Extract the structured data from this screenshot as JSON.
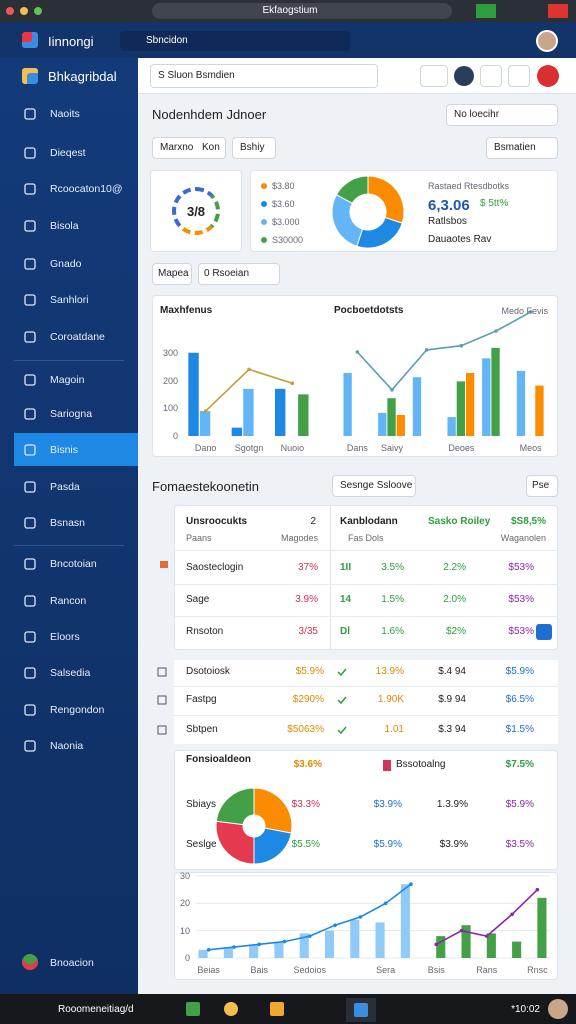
{
  "browser": {
    "url": "Ekfaogstium"
  },
  "header": {
    "app_name": "Iinnongi",
    "search": "Sbncidon"
  },
  "sidebar": {
    "title": "Bhkagribdal",
    "items": [
      "Naoits",
      "Dieqest",
      "Rcoocaton10@",
      "Bisola",
      "Gnado",
      "Sanhlori",
      "Coroatdane",
      "Magoin",
      "Sariogna",
      "Bisnis",
      "Pasda",
      "Bsnasn",
      "Bncotoian",
      "Rancon",
      "Eloors",
      "Salsedia",
      "Rengondon",
      "Naonia"
    ],
    "footer": "Bnoacion"
  },
  "toolbar": {
    "select": "S Sluon Bsmdien"
  },
  "page": {
    "title": "Nodenhdem Jdnoer",
    "status": "No loecihr",
    "tabs": [
      "Marxno",
      "Kon",
      "Bshiy"
    ],
    "filter": "Bsmatien"
  },
  "kpi": {
    "gauge": "3/8",
    "stats_title": "Rastaed Rtesdbotks",
    "stats_value": "6,3.06",
    "stats_change": "$ 5tt%",
    "stats_label": "Ratlsbos",
    "stats_note": "Dauaotes Rav"
  },
  "controls": {
    "label": "Mapea",
    "select": "0 Rsoeian"
  },
  "section": {
    "title": "Fomaestekoonetin",
    "button": "Sesnge Ssloove",
    "action": "Pse"
  },
  "table": {
    "title": "Unsroocukts",
    "count": "2",
    "subheader": [
      "Paans",
      "Magodes"
    ],
    "rows": [
      [
        "Saosteclogin",
        "37%"
      ],
      [
        "Sage",
        "3.9%"
      ],
      [
        "Rnsoton",
        "3/35"
      ]
    ],
    "right_header": [
      "Kanblodann",
      "Sasko Roiley",
      "$S8,5%"
    ],
    "right_subheader": [
      "Fas Dols",
      "Waganolen"
    ],
    "right_rows": [
      [
        "1II",
        "3.5%",
        "2.2%",
        "$53%"
      ],
      [
        "14",
        "1.5%",
        "2.0%",
        "$53%"
      ],
      [
        "Dl",
        "1.6%",
        "$2%",
        "$53%"
      ]
    ]
  },
  "list": {
    "rows": [
      [
        "Dsotoiosk",
        "$5.9%",
        "13.9%",
        "$.4 94",
        "$5.9%"
      ],
      [
        "Fastpg",
        "$290%",
        "1.90K",
        "$.9 94",
        "$6.5%"
      ],
      [
        "Sbtpen",
        "$5063%",
        "1.01",
        "$.3 94",
        "$1.5%"
      ]
    ]
  },
  "breakdown": {
    "title": "Fonsioaldeon",
    "value": "$3.6%",
    "label": "Bssotoalng",
    "total": "$7.5%",
    "rows": [
      [
        "Sbiays",
        "$3.3%",
        "$3.9%",
        "1.3.9%",
        "$5.9%"
      ],
      [
        "Seslge",
        "$5.5%",
        "$5.9%",
        "$3.9%",
        "$3.5%"
      ]
    ]
  },
  "taskbar": {
    "search": "Rooomeneitiag/d",
    "time": "*10:02"
  },
  "chart_data": [
    {
      "type": "bar",
      "title": "Maxhfenus",
      "categories": [
        "Dano",
        "Sgotgn",
        "Nuoio"
      ],
      "ylim": [
        0,
        400
      ],
      "yticks": [
        0,
        100,
        200,
        300
      ],
      "grid": false,
      "series": [
        {
          "color": "#1e88e5",
          "values": [
            300,
            30,
            170
          ]
        },
        {
          "color": "#64b5f6",
          "values": [
            90,
            170,
            null
          ]
        },
        {
          "color": "#43a047",
          "values": [
            null,
            null,
            150
          ]
        },
        {
          "type": "line",
          "color": "#c0a030",
          "values": [
            90,
            240,
            190
          ]
        }
      ]
    },
    {
      "type": "bar",
      "title": "Pocboetdotsts",
      "annotation": "Medo Fevis",
      "categories": [
        "Dans",
        "Saivy",
        null,
        "Deoes",
        null,
        "Meos"
      ],
      "ylim": [
        0,
        600
      ],
      "grid": false,
      "series": [
        {
          "color": "#64b5f6",
          "values": [
            300,
            110,
            280,
            90,
            370,
            310
          ]
        },
        {
          "color": "#43a047",
          "values": [
            null,
            180,
            null,
            260,
            420,
            null
          ]
        },
        {
          "color": "#fb8c00",
          "values": [
            null,
            100,
            null,
            300,
            null,
            240
          ]
        },
        {
          "type": "line",
          "color": "#5a9fb0",
          "values": [
            400,
            220,
            410,
            430,
            500,
            590
          ]
        }
      ]
    },
    {
      "type": "pie",
      "labels": [
        "$3.80",
        "$3.60",
        "$3.000",
        "S30000"
      ],
      "values": [
        30,
        25,
        28,
        17
      ],
      "colors": [
        "#fb8c00",
        "#1e88e5",
        "#64b5f6",
        "#43a047"
      ]
    },
    {
      "type": "pie",
      "values": [
        28,
        22,
        27,
        23
      ],
      "colors": [
        "#fb8c00",
        "#1e88e5",
        "#e53950",
        "#43a047"
      ]
    },
    {
      "type": "bar",
      "categories": [
        "Beias",
        null,
        "Bais",
        null,
        "Sedoios",
        null,
        null,
        "Sera",
        null,
        "Bsis",
        null,
        "Rans",
        null,
        "Rnsc"
      ],
      "ylim": [
        0,
        30
      ],
      "yticks": [
        0,
        10,
        20,
        30
      ],
      "grid": true,
      "series": [
        {
          "color": "#90caf9",
          "values": [
            3,
            4,
            5,
            6,
            9,
            10,
            14,
            13,
            27,
            null,
            null,
            null,
            null,
            null
          ]
        },
        {
          "color": "#43a047",
          "values": [
            null,
            null,
            null,
            null,
            null,
            null,
            null,
            null,
            null,
            8,
            12,
            9,
            6,
            22
          ]
        },
        {
          "type": "line",
          "color": "#1e88e5",
          "values": [
            3,
            4,
            5,
            6,
            8,
            12,
            15,
            20,
            27,
            null,
            null,
            null,
            null,
            null
          ]
        },
        {
          "type": "line",
          "color": "#8e24aa",
          "values": [
            null,
            null,
            null,
            null,
            null,
            null,
            null,
            null,
            null,
            5,
            10,
            8,
            16,
            25
          ]
        }
      ]
    }
  ]
}
